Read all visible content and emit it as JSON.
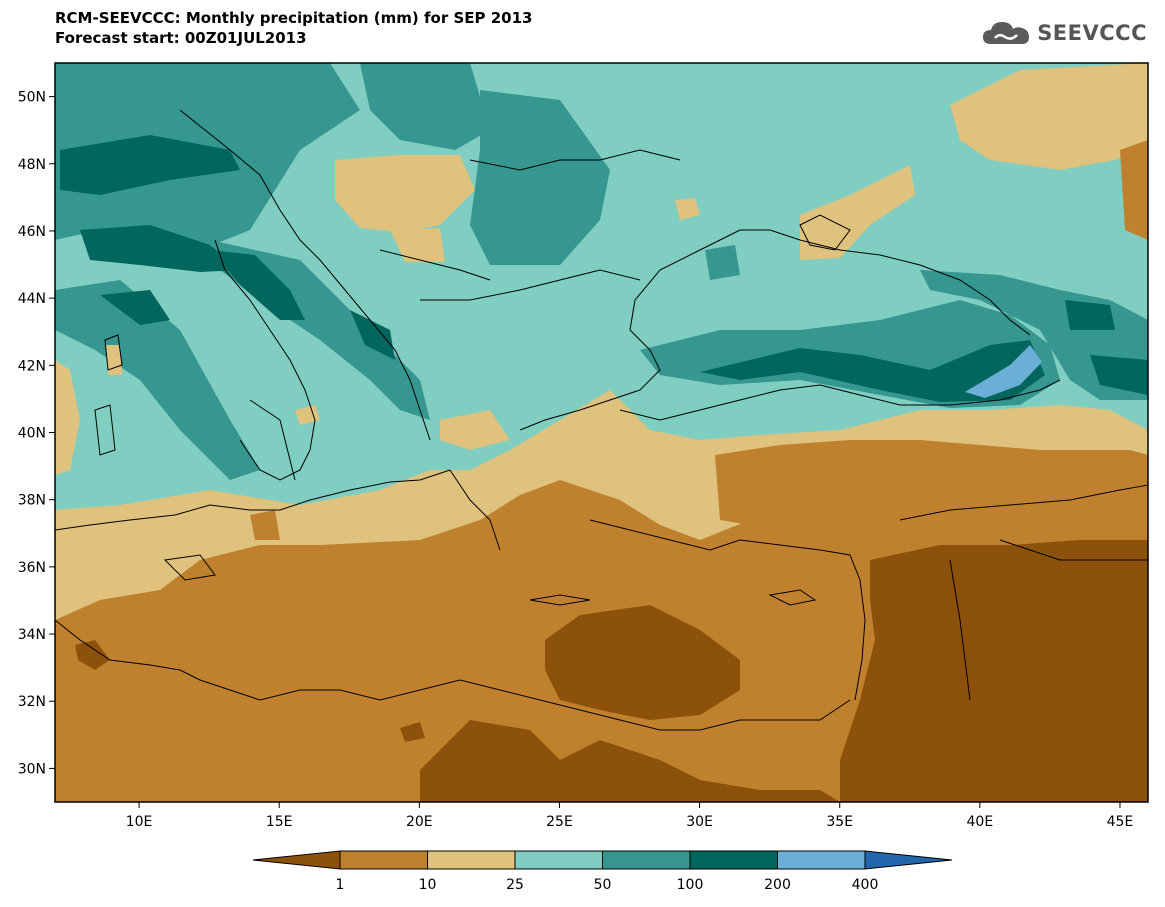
{
  "title": {
    "line1": "RCM-SEEVCCC: Monthly precipitation (mm) for SEP 2013",
    "line2": "Forecast start: 00Z01JUL2013"
  },
  "logo": {
    "text": "SEEVCCC",
    "icon": "cloud-icon",
    "color": "#5a5a5a"
  },
  "map": {
    "lon_range": [
      7,
      46
    ],
    "lat_range": [
      29,
      51
    ],
    "lat_ticks": [
      {
        "value": 50,
        "label": "50N"
      },
      {
        "value": 48,
        "label": "48N"
      },
      {
        "value": 46,
        "label": "46N"
      },
      {
        "value": 44,
        "label": "44N"
      },
      {
        "value": 42,
        "label": "42N"
      },
      {
        "value": 40,
        "label": "40N"
      },
      {
        "value": 38,
        "label": "38N"
      },
      {
        "value": 36,
        "label": "36N"
      },
      {
        "value": 34,
        "label": "34N"
      },
      {
        "value": 32,
        "label": "32N"
      },
      {
        "value": 30,
        "label": "30N"
      }
    ],
    "lon_ticks": [
      {
        "value": 10,
        "label": "10E"
      },
      {
        "value": 15,
        "label": "15E"
      },
      {
        "value": 20,
        "label": "20E"
      },
      {
        "value": 25,
        "label": "25E"
      },
      {
        "value": 30,
        "label": "30E"
      },
      {
        "value": 35,
        "label": "35E"
      },
      {
        "value": 40,
        "label": "40E"
      },
      {
        "value": 45,
        "label": "45E"
      }
    ]
  },
  "colorbar": {
    "colors": [
      "#8c510a",
      "#bf812d",
      "#dfc27d",
      "#80cdc1",
      "#35978f",
      "#01665e",
      "#6baed6",
      "#2166ac"
    ],
    "labels": [
      "1",
      "10",
      "25",
      "50",
      "100",
      "200",
      "400"
    ]
  }
}
